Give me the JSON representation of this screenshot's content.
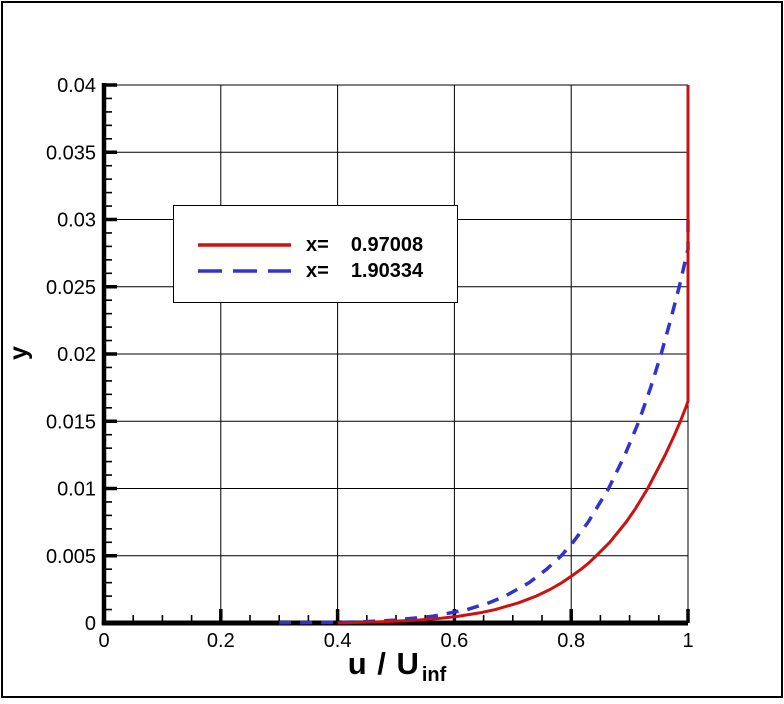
{
  "chart_data": {
    "type": "line",
    "title": "",
    "xlabel_main": "u / U",
    "xlabel_sub": "inf",
    "ylabel": "y",
    "xlim": [
      0,
      1
    ],
    "ylim": [
      0,
      0.04
    ],
    "x_major_ticks": [
      0,
      0.2,
      0.4,
      0.6,
      0.8,
      1
    ],
    "x_tick_labels": [
      "0",
      "0.2",
      "0.4",
      "0.6",
      "0.8",
      "1"
    ],
    "x_minor_step": 0.05,
    "y_major_ticks": [
      0,
      0.005,
      0.01,
      0.015,
      0.02,
      0.025,
      0.03,
      0.035,
      0.04
    ],
    "y_tick_labels": [
      "0",
      "0.005",
      "0.01",
      "0.015",
      "0.02",
      "0.025",
      "0.03",
      "0.035",
      "0.04"
    ],
    "y_minor_step": 0.001,
    "grid": true,
    "grid_color": "#000000",
    "axis_color": "#000000",
    "background": "#ffffff",
    "legend": {
      "position": "upper-left",
      "items": [
        {
          "label": "x=",
          "value": "0.97008",
          "line": "solid",
          "color": "#cc1111"
        },
        {
          "label": "x=",
          "value": "1.90334",
          "line": "dashed",
          "color": "#3333cc"
        }
      ]
    },
    "series": [
      {
        "name": "x= 0.97008",
        "color": "#cc1111",
        "style": "solid",
        "dash": null,
        "width": 3,
        "points": [
          [
            0.4,
            1e-05
          ],
          [
            0.437,
            5e-05
          ],
          [
            0.482,
            0.0001
          ],
          [
            0.532,
            0.0002
          ],
          [
            0.577,
            0.00035
          ],
          [
            0.607,
            0.0005
          ],
          [
            0.643,
            0.00075
          ],
          [
            0.67,
            0.001
          ],
          [
            0.71,
            0.0015
          ],
          [
            0.74,
            0.002
          ],
          [
            0.764,
            0.0025
          ],
          [
            0.784,
            0.003
          ],
          [
            0.801,
            0.0035
          ],
          [
            0.817,
            0.004
          ],
          [
            0.831,
            0.0045
          ],
          [
            0.843,
            0.005
          ],
          [
            0.866,
            0.006
          ],
          [
            0.894,
            0.0075
          ],
          [
            0.91,
            0.0085
          ],
          [
            0.931,
            0.01
          ],
          [
            0.961,
            0.0125
          ],
          [
            0.977,
            0.014
          ],
          [
            0.987,
            0.015
          ],
          [
            0.996,
            0.016
          ],
          [
            1.0,
            0.0165
          ],
          [
            1.0,
            0.04
          ]
        ]
      },
      {
        "name": "x= 1.90334",
        "color": "#3333cc",
        "style": "dashed",
        "dash": "12 9",
        "width": 3.5,
        "points": [
          [
            0.3,
            2e-05
          ],
          [
            0.405,
            5e-05
          ],
          [
            0.448,
            0.0001
          ],
          [
            0.494,
            0.0002
          ],
          [
            0.563,
            0.0005
          ],
          [
            0.622,
            0.001
          ],
          [
            0.659,
            0.0015
          ],
          [
            0.687,
            0.002
          ],
          [
            0.728,
            0.003
          ],
          [
            0.758,
            0.004
          ],
          [
            0.783,
            0.005
          ],
          [
            0.803,
            0.006
          ],
          [
            0.829,
            0.0075
          ],
          [
            0.864,
            0.01
          ],
          [
            0.892,
            0.0125
          ],
          [
            0.916,
            0.015
          ],
          [
            0.936,
            0.0175
          ],
          [
            0.954,
            0.02
          ],
          [
            0.97,
            0.0225
          ],
          [
            0.985,
            0.025
          ],
          [
            0.993,
            0.0265
          ],
          [
            1.0,
            0.0278
          ],
          [
            1.0,
            0.03
          ]
        ]
      }
    ]
  }
}
